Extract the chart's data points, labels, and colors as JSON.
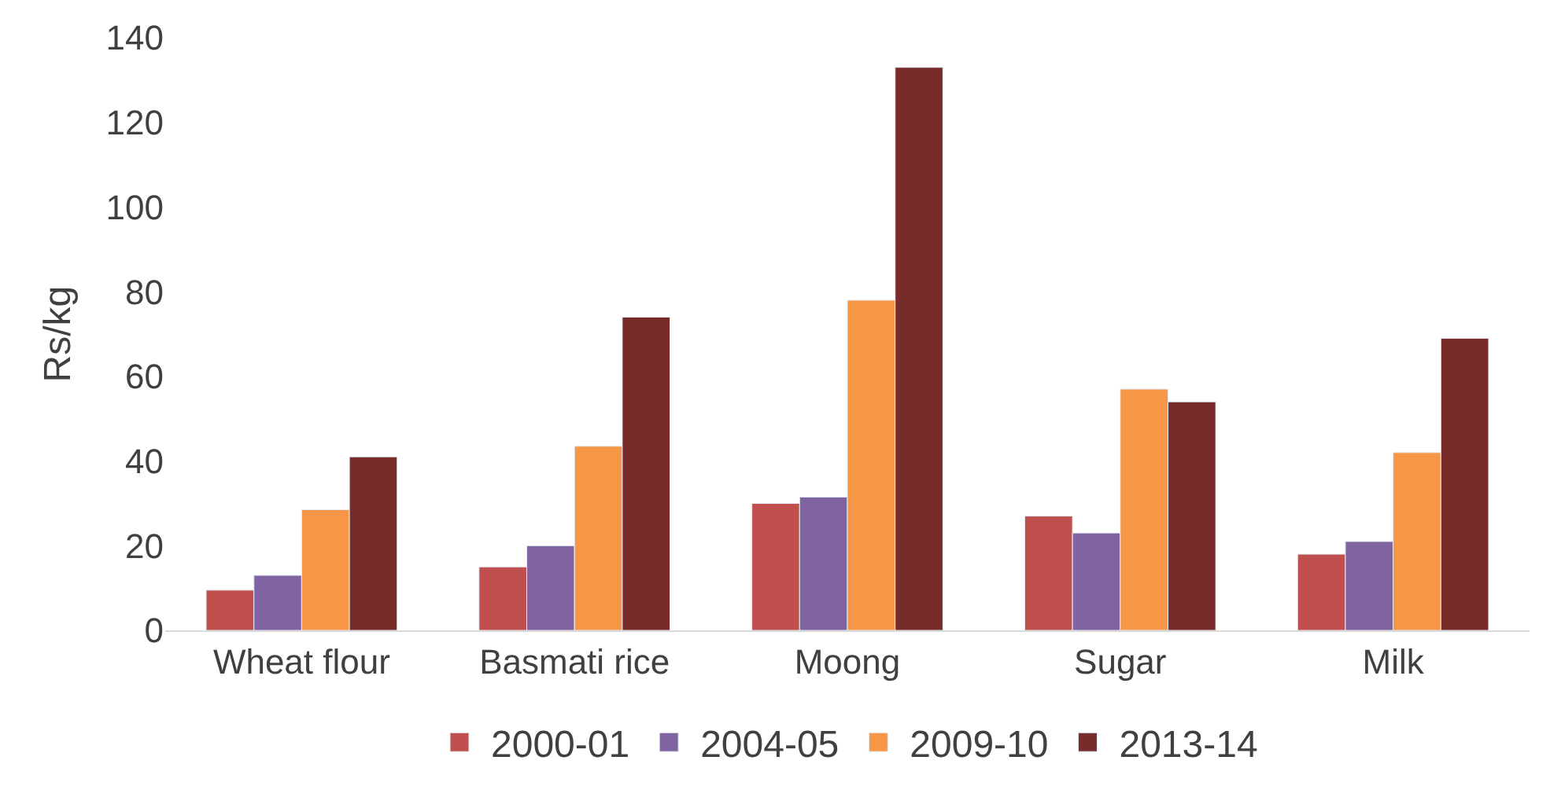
{
  "chart_data": {
    "type": "bar",
    "ylabel": "Rs/kg",
    "categories": [
      "Wheat flour",
      "Basmati rice",
      "Moong",
      "Sugar",
      "Milk"
    ],
    "series": [
      {
        "name": "2000-01",
        "color": "#c0504d",
        "values": [
          9.5,
          15,
          30,
          27,
          18
        ]
      },
      {
        "name": "2004-05",
        "color": "#8064a2",
        "values": [
          13,
          20,
          31.5,
          23,
          21
        ]
      },
      {
        "name": "2009-10",
        "color": "#f79646",
        "values": [
          28.5,
          43.5,
          78,
          57,
          42
        ]
      },
      {
        "name": "2013-14",
        "color": "#772c2a",
        "values": [
          41,
          74,
          133,
          54,
          69
        ]
      }
    ],
    "ylim": [
      0,
      140
    ],
    "yticks": [
      0,
      20,
      40,
      60,
      80,
      100,
      120,
      140
    ],
    "legend": "bottom"
  }
}
